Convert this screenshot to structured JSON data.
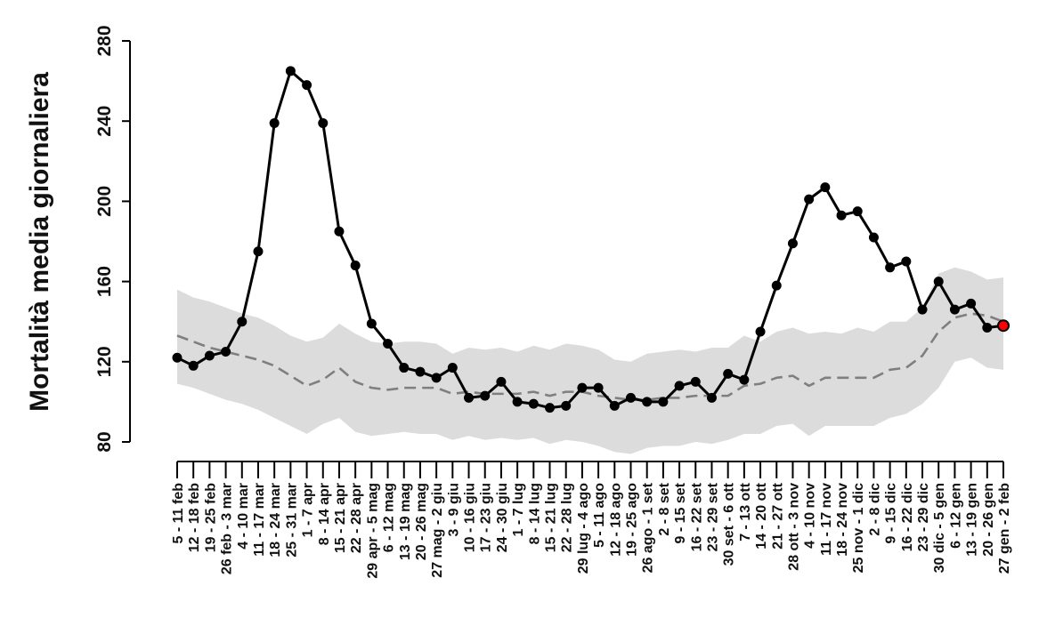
{
  "chart_data": {
    "type": "line",
    "title": "",
    "xlabel": "",
    "ylabel": "Mortalità media giornaliera",
    "ylim": [
      80,
      280
    ],
    "yticks": [
      80,
      120,
      160,
      200,
      240,
      280
    ],
    "grid": false,
    "legend": "none",
    "categories": [
      "5 - 11 feb",
      "12 - 18 feb",
      "19 - 25 feb",
      "26 feb - 3 mar",
      "4 - 10 mar",
      "11 - 17 mar",
      "18 - 24 mar",
      "25 - 31 mar",
      "1 - 7 apr",
      "8 - 14 apr",
      "15 - 21 apr",
      "22 - 28 apr",
      "29 apr - 5 mag",
      "6 - 12 mag",
      "13 - 19 mag",
      "20 - 26 mag",
      "27 mag - 2 giu",
      "3 - 9 giu",
      "10 - 16 giu",
      "17 - 23 giu",
      "24 - 30 giu",
      "1 - 7 lug",
      "8 - 14 lug",
      "15 - 21 lug",
      "22 - 28 lug",
      "29 lug - 4 ago",
      "5 - 11 ago",
      "12 - 18 ago",
      "19 - 25 ago",
      "26 ago - 1 set",
      "2 - 8 set",
      "9 - 15 set",
      "16 - 22 set",
      "23 - 29 set",
      "30 set - 6 ott",
      "7 - 13 ott",
      "14 - 20 ott",
      "21 - 27 ott",
      "28 ott - 3 nov",
      "4 - 10 nov",
      "11 - 17 nov",
      "18 - 24 nov",
      "25 nov - 1 dic",
      "2 - 8 dic",
      "9 - 15 dic",
      "16 - 22 dic",
      "23 - 29 dic",
      "30 dic - 5 gen",
      "6 - 12 gen",
      "13 - 19 gen",
      "20 - 26 gen",
      "27 gen - 2 feb"
    ],
    "series": [
      {
        "kind": "observed",
        "style": "solid line with filled circle markers",
        "color": "#000000",
        "last_point_color": "#ff0000",
        "values": [
          122,
          118,
          123,
          125,
          140,
          175,
          239,
          265,
          258,
          239,
          185,
          168,
          139,
          129,
          117,
          115,
          112,
          117,
          102,
          103,
          110,
          100,
          99,
          97,
          98,
          107,
          107,
          98,
          102,
          100,
          100,
          108,
          110,
          102,
          114,
          111,
          135,
          158,
          179,
          201,
          207,
          193,
          195,
          182,
          167,
          170,
          146,
          160,
          146,
          149,
          137,
          138
        ]
      },
      {
        "kind": "baseline",
        "style": "dashed line",
        "color": "#7f7f7f",
        "values": [
          133,
          130,
          127,
          125,
          123,
          121,
          118,
          113,
          108,
          111,
          117,
          110,
          107,
          106,
          107,
          107,
          107,
          104,
          105,
          104,
          104,
          104,
          105,
          103,
          105,
          105,
          103,
          102,
          101,
          101,
          102,
          102,
          103,
          103,
          103,
          108,
          109,
          112,
          113,
          108,
          112,
          112,
          112,
          112,
          116,
          117,
          123,
          135,
          142,
          144,
          143,
          140
        ]
      }
    ],
    "band": {
      "kind": "range",
      "color": "#dcdcdc",
      "upper": [
        156,
        152,
        150,
        147,
        144,
        142,
        138,
        133,
        130,
        132,
        139,
        134,
        130,
        129,
        130,
        130,
        129,
        124,
        127,
        126,
        127,
        125,
        128,
        126,
        129,
        128,
        126,
        121,
        120,
        124,
        125,
        126,
        125,
        127,
        127,
        133,
        130,
        135,
        137,
        134,
        135,
        134,
        137,
        135,
        140,
        140,
        147,
        164,
        167,
        165,
        161,
        162
      ],
      "lower": [
        109,
        107,
        104,
        101,
        99,
        96,
        92,
        88,
        84,
        89,
        92,
        85,
        83,
        84,
        85,
        84,
        84,
        81,
        83,
        81,
        82,
        81,
        82,
        79,
        81,
        80,
        78,
        75,
        74,
        77,
        78,
        78,
        80,
        79,
        81,
        84,
        84,
        88,
        89,
        83,
        88,
        88,
        88,
        88,
        92,
        94,
        99,
        107,
        120,
        122,
        117,
        116
      ]
    }
  }
}
